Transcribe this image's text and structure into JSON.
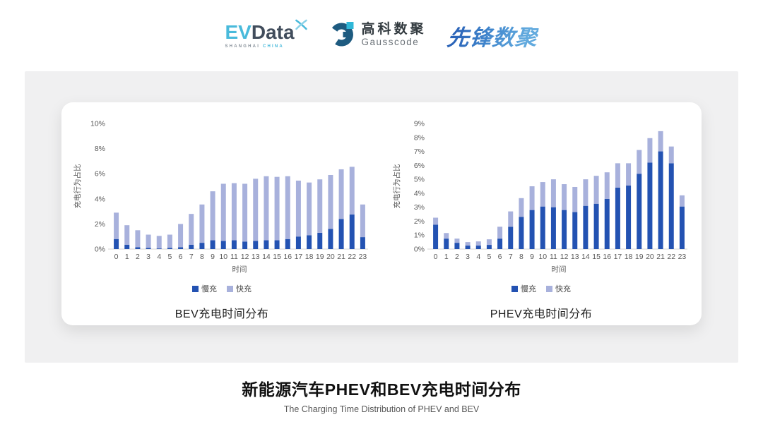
{
  "header": {
    "evdata_logo": {
      "ev": "EV",
      "data": "Data",
      "tagline_left": "SHANGHAI",
      "tagline_right": "CHINA"
    },
    "gausscode_logo": {
      "name_cn": "高科数聚",
      "name_en": "Gausscode"
    },
    "xianfeng_logo": {
      "text": "先锋数聚"
    }
  },
  "colors": {
    "slow_charge": "#2352B2",
    "fast_charge": "#A8B1DC",
    "accent_cyan": "#3FB6DC",
    "brand_dark": "#414D5C",
    "gauss_blue": "#1E5B80",
    "panel_bg": "#F0F0F1"
  },
  "chart_data": [
    {
      "type": "bar",
      "stacked": true,
      "title": "BEV充电时间分布",
      "ylabel": "充电行为占比",
      "xlabel": "时间",
      "ylim": [
        0,
        10
      ],
      "ytick_step": 2,
      "ytick_suffix": "%",
      "grid": false,
      "legend_position": "bottom",
      "categories": [
        "0",
        "1",
        "2",
        "3",
        "4",
        "5",
        "6",
        "7",
        "8",
        "9",
        "10",
        "11",
        "12",
        "13",
        "14",
        "15",
        "16",
        "17",
        "18",
        "19",
        "20",
        "21",
        "22",
        "23"
      ],
      "series": [
        {
          "name": "慢充",
          "color": "#2352B2",
          "values": [
            0.8,
            0.35,
            0.15,
            0.1,
            0.05,
            0.1,
            0.15,
            0.35,
            0.5,
            0.7,
            0.65,
            0.7,
            0.6,
            0.65,
            0.7,
            0.7,
            0.8,
            1.0,
            1.1,
            1.3,
            1.6,
            2.4,
            2.75,
            0.95
          ]
        },
        {
          "name": "快充",
          "color": "#A8B1DC",
          "values": [
            2.1,
            1.55,
            1.35,
            1.05,
            1.0,
            1.05,
            1.85,
            2.45,
            3.05,
            3.9,
            4.55,
            4.55,
            4.6,
            4.95,
            5.1,
            5.05,
            5.0,
            4.45,
            4.2,
            4.25,
            4.3,
            3.95,
            3.8,
            2.6
          ]
        }
      ]
    },
    {
      "type": "bar",
      "stacked": true,
      "title": "PHEV充电时间分布",
      "ylabel": "充电行为占比",
      "xlabel": "时间",
      "ylim": [
        0,
        9
      ],
      "ytick_step": 1,
      "ytick_suffix": "%",
      "grid": false,
      "legend_position": "bottom",
      "categories": [
        "0",
        "1",
        "2",
        "3",
        "4",
        "5",
        "6",
        "7",
        "8",
        "9",
        "10",
        "11",
        "12",
        "13",
        "14",
        "15",
        "16",
        "17",
        "18",
        "19",
        "20",
        "21",
        "22",
        "23"
      ],
      "series": [
        {
          "name": "慢充",
          "color": "#2352B2",
          "values": [
            1.75,
            0.75,
            0.45,
            0.25,
            0.25,
            0.3,
            0.75,
            1.6,
            2.3,
            2.8,
            3.05,
            3.0,
            2.8,
            2.65,
            3.1,
            3.25,
            3.6,
            4.4,
            4.55,
            5.4,
            6.2,
            7.0,
            6.15,
            3.05
          ]
        },
        {
          "name": "快充",
          "color": "#A8B1DC",
          "values": [
            0.5,
            0.4,
            0.3,
            0.25,
            0.3,
            0.4,
            0.85,
            1.1,
            1.35,
            1.7,
            1.75,
            2.0,
            1.85,
            1.8,
            1.9,
            2.0,
            1.9,
            1.75,
            1.6,
            1.7,
            1.75,
            1.45,
            1.2,
            0.8
          ]
        }
      ]
    }
  ],
  "footer": {
    "title": "新能源汽车PHEV和BEV充电时间分布",
    "subtitle": "The Charging Time Distribution of PHEV and BEV"
  }
}
